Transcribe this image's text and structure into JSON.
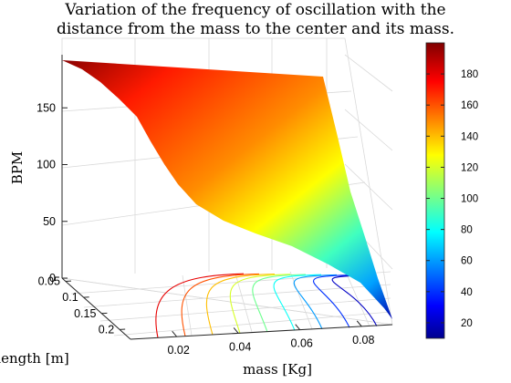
{
  "chart_data": {
    "type": "surface",
    "title": "Variation of the frequency of oscillation with the distance from the mass to the center and its mass.",
    "title_lines": [
      "Variation of the frequency of oscillation with the",
      "distance from the mass to the center and its mass."
    ],
    "xlabel": "mass [Kg]",
    "ylabel": "length [m]",
    "zlabel": "BPM",
    "x_ticks": [
      "0.02",
      "0.04",
      "0.06",
      "0.08"
    ],
    "y_ticks": [
      "0.05",
      "0.1",
      "0.15",
      "0.2"
    ],
    "z_ticks": [
      "0",
      "50",
      "100",
      "150"
    ],
    "xlim": [
      0.005,
      0.09
    ],
    "ylim": [
      0.04,
      0.23
    ],
    "zlim": [
      0,
      200
    ],
    "surface_corners": [
      {
        "mass": 0.005,
        "length": 0.04,
        "bpm": 198
      },
      {
        "mass": 0.09,
        "length": 0.04,
        "bpm": 182
      },
      {
        "mass": 0.005,
        "length": 0.23,
        "bpm": 160
      },
      {
        "mass": 0.09,
        "length": 0.23,
        "bpm": 12
      }
    ],
    "colorbar": {
      "ticks": [
        "20",
        "40",
        "60",
        "80",
        "100",
        "120",
        "140",
        "160",
        "180"
      ],
      "range": [
        10,
        200
      ],
      "colormap": "jet"
    },
    "contour_levels": [
      180,
      160,
      140,
      120,
      100,
      80,
      60,
      40,
      20
    ],
    "grid": true
  }
}
